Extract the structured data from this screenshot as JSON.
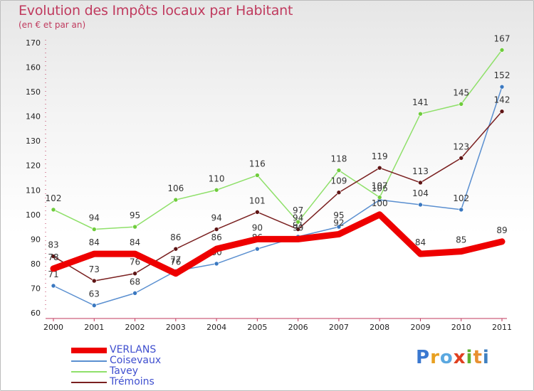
{
  "header": {
    "title": "Evolution des Impôts locaux par Habitant",
    "subtitle": "(en € et par an)"
  },
  "brand": {
    "text": "Proxiti",
    "letters": [
      "P",
      "r",
      "o",
      "x",
      "i",
      "t",
      "i"
    ]
  },
  "chart_data": {
    "type": "line",
    "title": "Evolution des Impôts locaux par Habitant",
    "subtitle": "(en € et par an)",
    "xlabel": "",
    "ylabel": "",
    "x": [
      2000,
      2001,
      2002,
      2003,
      2004,
      2005,
      2006,
      2007,
      2008,
      2009,
      2010,
      2011
    ],
    "ylim": [
      60,
      170
    ],
    "yticks": [
      60,
      70,
      80,
      90,
      100,
      110,
      120,
      130,
      140,
      150,
      160,
      170
    ],
    "grid": false,
    "legend": "bottom-left",
    "series": [
      {
        "name": "Coisevaux",
        "color": "#5a8fd0",
        "marker": "#3a78c0",
        "values": [
          71,
          63,
          68,
          77,
          80,
          86,
          91,
          95,
          106,
          104,
          102,
          152
        ]
      },
      {
        "name": "Tavey",
        "color": "#8fe06a",
        "marker": "#6fcc3c",
        "values": [
          102,
          94,
          95,
          106,
          110,
          116,
          97,
          118,
          107,
          141,
          145,
          167
        ]
      },
      {
        "name": "Trémoins",
        "color": "#7a2020",
        "marker": "#5e1414",
        "values": [
          83,
          73,
          76,
          86,
          94,
          101,
          94,
          109,
          119,
          113,
          123,
          142
        ]
      },
      {
        "name": "VERLANS",
        "color": "#ee0000",
        "marker": "#ee0000",
        "values": [
          78,
          84,
          84,
          76,
          86,
          90,
          90,
          92,
          100,
          84,
          85,
          89
        ]
      }
    ],
    "legend_order": [
      "VERLANS",
      "Coisevaux",
      "Tavey",
      "Trémoins"
    ]
  }
}
